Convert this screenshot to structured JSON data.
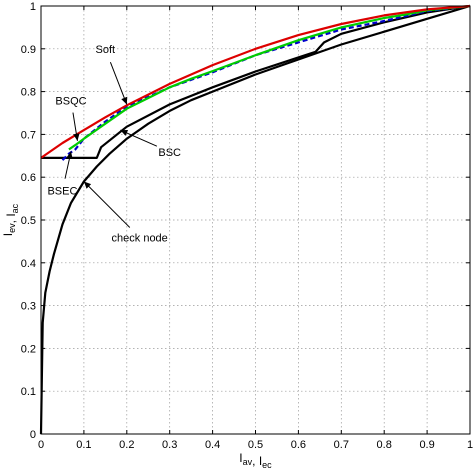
{
  "chart_data": {
    "type": "line",
    "title": "",
    "xlabel": {
      "parts": [
        [
          "I",
          "av"
        ],
        [
          ", "
        ],
        [
          "I",
          "ec"
        ]
      ]
    },
    "ylabel": {
      "parts": [
        [
          "I",
          "ev"
        ],
        [
          ", "
        ],
        [
          "I",
          "ac"
        ]
      ]
    },
    "xlim": [
      0,
      1
    ],
    "ylim": [
      0,
      1
    ],
    "xticks": [
      "0",
      "0.1",
      "0.2",
      "0.3",
      "0.4",
      "0.5",
      "0.6",
      "0.7",
      "0.8",
      "0.9",
      "1"
    ],
    "yticks": [
      "0",
      "0.1",
      "0.2",
      "0.3",
      "0.4",
      "0.5",
      "0.6",
      "0.7",
      "0.8",
      "0.9",
      "1"
    ],
    "grid": true,
    "series": [
      {
        "name": "check node",
        "color": "#000000",
        "style": "solid",
        "x": [
          0,
          0.004,
          0.01,
          0.02,
          0.03,
          0.05,
          0.07,
          0.1,
          0.13,
          0.16,
          0.2,
          0.25,
          0.3,
          0.35,
          0.4,
          0.5,
          0.6,
          0.7,
          0.8,
          0.9,
          1.0
        ],
        "y": [
          0.0,
          0.26,
          0.33,
          0.38,
          0.42,
          0.49,
          0.54,
          0.59,
          0.625,
          0.655,
          0.69,
          0.725,
          0.755,
          0.78,
          0.8,
          0.84,
          0.875,
          0.91,
          0.94,
          0.97,
          1.0
        ]
      },
      {
        "name": "BSC",
        "color": "#000000",
        "style": "solid",
        "x": [
          0.0,
          0.13,
          0.14,
          0.2,
          0.3,
          0.4,
          0.5,
          0.6,
          0.64,
          0.66,
          0.7,
          0.8,
          0.9,
          1.0
        ],
        "y": [
          0.645,
          0.645,
          0.67,
          0.718,
          0.77,
          0.81,
          0.847,
          0.88,
          0.893,
          0.915,
          0.935,
          0.962,
          0.985,
          1.0
        ]
      },
      {
        "name": "BSEC",
        "color": "#0000cc",
        "style": "dashed",
        "x": [
          0.05,
          0.065,
          0.08,
          0.1,
          0.15,
          0.2,
          0.3,
          0.4,
          0.5,
          0.6,
          0.7,
          0.8,
          0.9,
          1.0
        ],
        "y": [
          0.64,
          0.655,
          0.665,
          0.69,
          0.73,
          0.765,
          0.81,
          0.845,
          0.885,
          0.915,
          0.945,
          0.965,
          0.988,
          1.0
        ]
      },
      {
        "name": "BSQC",
        "color": "#00cc00",
        "style": "solid",
        "x": [
          0.065,
          0.08,
          0.1,
          0.15,
          0.2,
          0.25,
          0.28,
          0.3,
          0.35,
          0.4,
          0.5,
          0.6,
          0.7,
          0.8,
          0.85,
          0.9,
          1.0
        ],
        "y": [
          0.665,
          0.675,
          0.69,
          0.725,
          0.76,
          0.785,
          0.8,
          0.81,
          0.83,
          0.848,
          0.885,
          0.92,
          0.95,
          0.972,
          0.98,
          0.99,
          1.0
        ]
      },
      {
        "name": "Soft",
        "color": "#dd0000",
        "style": "solid",
        "x": [
          0.0,
          0.05,
          0.1,
          0.15,
          0.2,
          0.3,
          0.4,
          0.5,
          0.6,
          0.7,
          0.8,
          0.9,
          1.0
        ],
        "y": [
          0.645,
          0.68,
          0.71,
          0.74,
          0.768,
          0.818,
          0.862,
          0.9,
          0.932,
          0.958,
          0.978,
          0.992,
          1.0
        ]
      }
    ],
    "annotations": [
      {
        "text": "Soft",
        "label_at": [
          0.15,
          0.89
        ],
        "arrow_to": [
          0.2,
          0.77
        ]
      },
      {
        "text": "BSQC",
        "label_at": [
          0.07,
          0.77
        ],
        "arrow_to": [
          0.085,
          0.685
        ]
      },
      {
        "text": "BSEC",
        "label_at": [
          0.05,
          0.56
        ],
        "arrow_to": [
          0.07,
          0.66
        ]
      },
      {
        "text": "BSC",
        "label_at": [
          0.3,
          0.65
        ],
        "arrow_to": [
          0.185,
          0.71
        ]
      },
      {
        "text": "check node",
        "label_at": [
          0.23,
          0.45
        ],
        "arrow_to": [
          0.1,
          0.59
        ]
      }
    ]
  }
}
